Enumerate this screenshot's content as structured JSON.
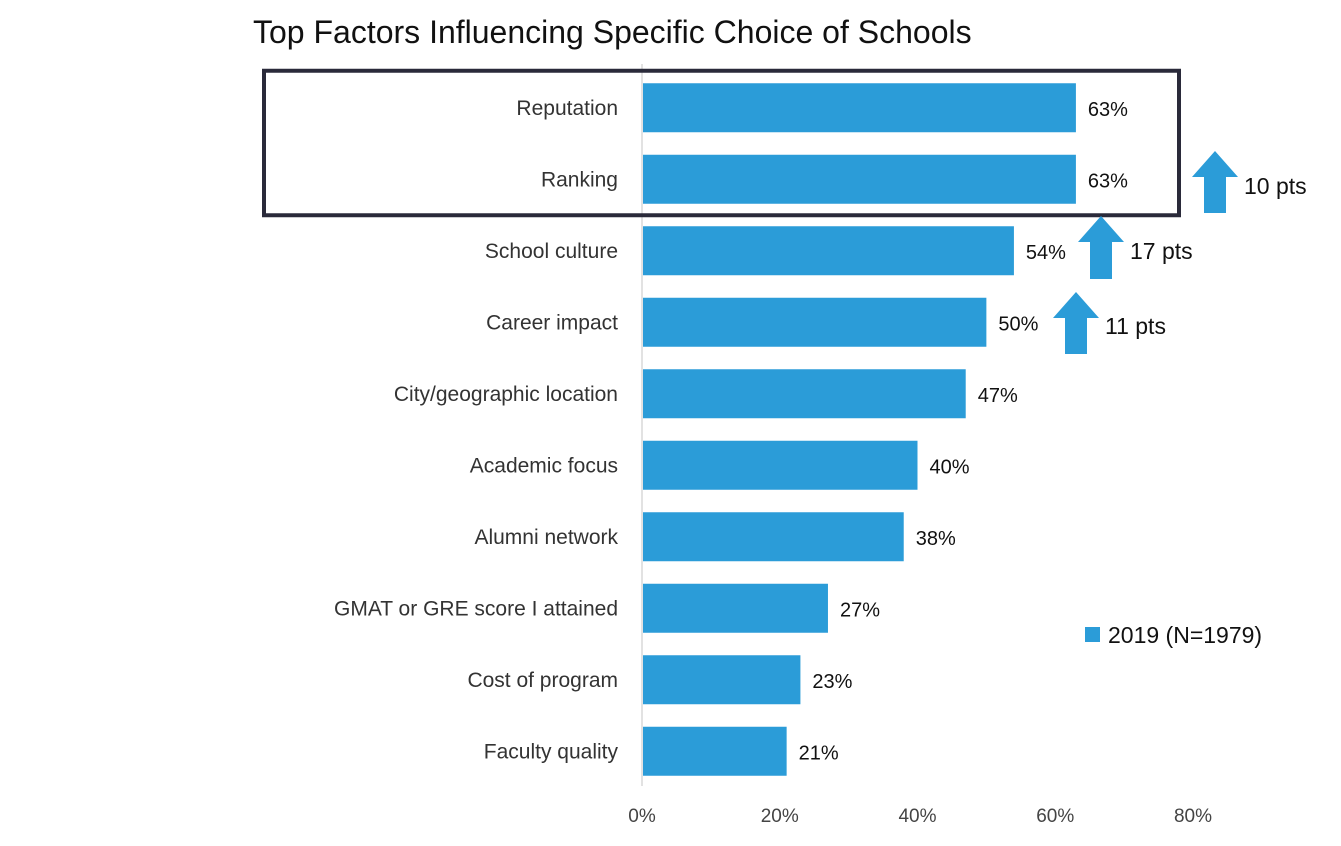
{
  "chart_data": {
    "type": "bar",
    "orientation": "horizontal",
    "title": "Top Factors Influencing Specific Choice of Schools",
    "categories": [
      "Reputation",
      "Ranking",
      "School culture",
      "Career impact",
      "City/geographic location",
      "Academic focus",
      "Alumni network",
      "GMAT or GRE score I attained",
      "Cost of program",
      "Faculty quality"
    ],
    "series": [
      {
        "name": "2019 (N=1979)",
        "values": [
          63,
          63,
          54,
          50,
          47,
          40,
          38,
          27,
          23,
          21
        ],
        "color": "#2B9CD8"
      }
    ],
    "value_labels": [
      "63%",
      "63%",
      "54%",
      "50%",
      "47%",
      "40%",
      "38%",
      "27%",
      "23%",
      "21%"
    ],
    "xlim": [
      0,
      80
    ],
    "xticks": [
      0,
      20,
      40,
      60,
      80
    ],
    "xtick_labels": [
      "0%",
      "20%",
      "40%",
      "60%",
      "80%"
    ],
    "legend": {
      "label": "2019 (N=1979)",
      "placement": "right"
    },
    "highlight_box": {
      "categories": [
        "Reputation",
        "Ranking"
      ],
      "color": "#2A2A3A"
    },
    "annotations": [
      {
        "category": "Ranking",
        "text": "10 pts",
        "arrow": "up",
        "color": "#2B9CD8"
      },
      {
        "category": "School culture",
        "text": "17 pts",
        "arrow": "up",
        "color": "#2B9CD8"
      },
      {
        "category": "Career impact",
        "text": "11 pts",
        "arrow": "up",
        "color": "#2B9CD8"
      }
    ]
  }
}
